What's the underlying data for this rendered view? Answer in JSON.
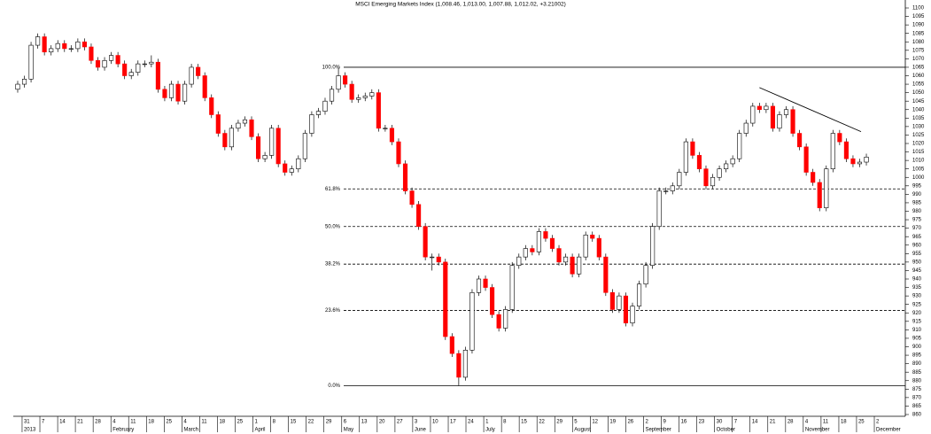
{
  "chart_data": {
    "type": "candlestick",
    "title": "MSCI Emerging Markets Index (1,008.46, 1,013.00, 1,007.88, 1,012.02, +3.21002)",
    "x": [
      0,
      1,
      2,
      3,
      4,
      5,
      6,
      7,
      8,
      9,
      10,
      11,
      12,
      13,
      14,
      15,
      16,
      17,
      18,
      19,
      20,
      21,
      22,
      23,
      24,
      25,
      26,
      27,
      28,
      29,
      30,
      31,
      32,
      33,
      34,
      35,
      36,
      37,
      38,
      39,
      40,
      41,
      42,
      43,
      44,
      45,
      46,
      47,
      48,
      49,
      50,
      51,
      52,
      53,
      54,
      55,
      56,
      57,
      58,
      59,
      60,
      61,
      62,
      63,
      64,
      65,
      66,
      67,
      68,
      69,
      70,
      71,
      72,
      73,
      74,
      75,
      76,
      77,
      78,
      79,
      80,
      81,
      82,
      83,
      84,
      85,
      86,
      87,
      88,
      89,
      90,
      91,
      92,
      93,
      94,
      95,
      96,
      97,
      98,
      99,
      100,
      101,
      102,
      103,
      104,
      105,
      106,
      107,
      108,
      109,
      110,
      111,
      112,
      113,
      114,
      115,
      116,
      117,
      118,
      119,
      120,
      121,
      122,
      123,
      124,
      125,
      126,
      127
    ],
    "open": [
      1052,
      1055,
      1058,
      1078,
      1083,
      1074,
      1076,
      1079,
      1076,
      1076,
      1080,
      1077,
      1069,
      1065,
      1069,
      1072,
      1067,
      1060,
      1062,
      1067,
      1067,
      1068,
      1052,
      1047,
      1055,
      1045,
      1055,
      1065,
      1060,
      1047,
      1037,
      1026,
      1018,
      1029,
      1032,
      1034,
      1024,
      1011,
      1013,
      1029,
      1008,
      1003,
      1005,
      1011,
      1026,
      1037,
      1039,
      1045,
      1052,
      1060,
      1055,
      1046,
      1047,
      1048,
      1050,
      1029,
      1029,
      1021,
      1008,
      992,
      984,
      971,
      953,
      953,
      950,
      906,
      896,
      882,
      898,
      932,
      940,
      935,
      919,
      911,
      922,
      948,
      953,
      958,
      956,
      968,
      964,
      958,
      950,
      953,
      943,
      953,
      966,
      964,
      953,
      932,
      922,
      930,
      914,
      924,
      937,
      948,
      971,
      992,
      992,
      995,
      1003,
      1021,
      1013,
      1005,
      995,
      1000,
      1005,
      1008,
      1011,
      1026,
      1032,
      1042,
      1040,
      1042,
      1029,
      1037,
      1040,
      1026,
      1018,
      1003,
      997,
      982,
      1005,
      1026,
      1021,
      1011,
      1008,
      1009
    ],
    "high": [
      1057,
      1060,
      1080,
      1085,
      1085,
      1078,
      1081,
      1081,
      1078,
      1082,
      1082,
      1079,
      1071,
      1071,
      1074,
      1074,
      1069,
      1064,
      1069,
      1069,
      1072,
      1070,
      1054,
      1057,
      1057,
      1057,
      1067,
      1067,
      1062,
      1049,
      1039,
      1028,
      1031,
      1034,
      1036,
      1036,
      1026,
      1015,
      1031,
      1031,
      1010,
      1007,
      1013,
      1028,
      1039,
      1041,
      1047,
      1054,
      1065,
      1062,
      1057,
      1049,
      1050,
      1052,
      1052,
      1031,
      1031,
      1023,
      1010,
      994,
      986,
      973,
      955,
      955,
      952,
      908,
      898,
      900,
      934,
      942,
      942,
      937,
      921,
      924,
      950,
      955,
      960,
      960,
      970,
      970,
      966,
      960,
      955,
      955,
      955,
      968,
      968,
      966,
      955,
      934,
      932,
      932,
      926,
      939,
      950,
      973,
      994,
      994,
      997,
      1005,
      1023,
      1023,
      1015,
      1007,
      1002,
      1007,
      1010,
      1013,
      1028,
      1034,
      1044,
      1044,
      1044,
      1044,
      1039,
      1042,
      1042,
      1028,
      1020,
      1005,
      999,
      1007,
      1028,
      1028,
      1023,
      1013,
      1011,
      1014
    ],
    "low": [
      1050,
      1053,
      1056,
      1076,
      1072,
      1072,
      1074,
      1074,
      1074,
      1074,
      1075,
      1067,
      1063,
      1063,
      1067,
      1065,
      1058,
      1058,
      1060,
      1065,
      1065,
      1050,
      1045,
      1045,
      1043,
      1043,
      1053,
      1058,
      1045,
      1035,
      1024,
      1016,
      1016,
      1027,
      1030,
      1022,
      1009,
      1009,
      1011,
      1006,
      1001,
      1001,
      1003,
      1009,
      1024,
      1035,
      1037,
      1043,
      1050,
      1053,
      1044,
      1044,
      1045,
      1046,
      1027,
      1027,
      1019,
      1006,
      990,
      982,
      969,
      951,
      945,
      948,
      904,
      894,
      877,
      880,
      896,
      930,
      933,
      917,
      909,
      909,
      920,
      946,
      951,
      954,
      954,
      962,
      956,
      948,
      948,
      941,
      941,
      951,
      962,
      951,
      930,
      920,
      920,
      912,
      912,
      922,
      935,
      946,
      969,
      990,
      990,
      993,
      1001,
      1011,
      1003,
      993,
      993,
      998,
      1003,
      1006,
      1009,
      1024,
      1030,
      1038,
      1038,
      1027,
      1027,
      1035,
      1024,
      1016,
      1001,
      995,
      980,
      980,
      1003,
      1019,
      1009,
      1006,
      1006,
      1007
    ],
    "close": [
      1055,
      1058,
      1078,
      1083,
      1074,
      1076,
      1079,
      1076,
      1076,
      1080,
      1077,
      1069,
      1065,
      1069,
      1072,
      1067,
      1060,
      1062,
      1067,
      1067,
      1068,
      1052,
      1047,
      1055,
      1045,
      1055,
      1065,
      1060,
      1047,
      1037,
      1026,
      1018,
      1029,
      1032,
      1034,
      1024,
      1011,
      1013,
      1029,
      1008,
      1003,
      1005,
      1011,
      1026,
      1037,
      1039,
      1045,
      1052,
      1060,
      1055,
      1046,
      1047,
      1048,
      1050,
      1029,
      1029,
      1021,
      1008,
      992,
      984,
      971,
      953,
      953,
      950,
      906,
      896,
      882,
      898,
      932,
      940,
      935,
      919,
      911,
      922,
      948,
      953,
      958,
      956,
      968,
      964,
      958,
      950,
      953,
      943,
      953,
      966,
      964,
      953,
      932,
      922,
      930,
      914,
      924,
      937,
      948,
      971,
      992,
      992,
      995,
      1003,
      1021,
      1013,
      1005,
      995,
      1000,
      1005,
      1008,
      1011,
      1026,
      1032,
      1042,
      1040,
      1042,
      1029,
      1037,
      1040,
      1026,
      1018,
      1003,
      997,
      982,
      1005,
      1026,
      1021,
      1011,
      1008,
      1009,
      1012
    ],
    "up_color": "#ffffff",
    "down_color": "#ff0000",
    "xlim": [
      -0.66,
      131.9
    ],
    "ylim": [
      860,
      1100
    ],
    "yticks": [
      860,
      865,
      870,
      875,
      880,
      885,
      890,
      895,
      900,
      905,
      910,
      915,
      920,
      925,
      930,
      935,
      940,
      945,
      950,
      955,
      960,
      965,
      970,
      975,
      980,
      985,
      990,
      995,
      1000,
      1005,
      1010,
      1015,
      1020,
      1025,
      1030,
      1035,
      1040,
      1045,
      1050,
      1055,
      1060,
      1065,
      1070,
      1075,
      1080,
      1085,
      1090,
      1095,
      1100
    ],
    "xticks": [
      {
        "value": 0.66,
        "label": "31"
      },
      {
        "value": 3.32,
        "label": "7"
      },
      {
        "value": 5.98,
        "label": "14"
      },
      {
        "value": 8.63,
        "label": "21"
      },
      {
        "value": 11.29,
        "label": "28"
      },
      {
        "value": 13.95,
        "label": "4"
      },
      {
        "value": 16.6,
        "label": "11"
      },
      {
        "value": 19.26,
        "label": "18"
      },
      {
        "value": 21.92,
        "label": "25"
      },
      {
        "value": 24.57,
        "label": "4"
      },
      {
        "value": 27.23,
        "label": "11"
      },
      {
        "value": 29.89,
        "label": "18"
      },
      {
        "value": 32.54,
        "label": "25"
      },
      {
        "value": 35.2,
        "label": "1"
      },
      {
        "value": 37.86,
        "label": "8"
      },
      {
        "value": 40.52,
        "label": "15"
      },
      {
        "value": 43.17,
        "label": "22"
      },
      {
        "value": 45.83,
        "label": "29"
      },
      {
        "value": 48.49,
        "label": "6"
      },
      {
        "value": 51.14,
        "label": "13"
      },
      {
        "value": 53.8,
        "label": "20"
      },
      {
        "value": 56.46,
        "label": "27"
      },
      {
        "value": 59.11,
        "label": "3"
      },
      {
        "value": 61.77,
        "label": "10"
      },
      {
        "value": 64.43,
        "label": "17"
      },
      {
        "value": 67.08,
        "label": "24"
      },
      {
        "value": 69.74,
        "label": "1"
      },
      {
        "value": 72.4,
        "label": "8"
      },
      {
        "value": 75.05,
        "label": "15"
      },
      {
        "value": 77.71,
        "label": "22"
      },
      {
        "value": 80.37,
        "label": "29"
      },
      {
        "value": 83.02,
        "label": "5"
      },
      {
        "value": 85.68,
        "label": "12"
      },
      {
        "value": 88.34,
        "label": "19"
      },
      {
        "value": 91.0,
        "label": "26"
      },
      {
        "value": 93.65,
        "label": "2"
      },
      {
        "value": 96.31,
        "label": "9"
      },
      {
        "value": 98.97,
        "label": "16"
      },
      {
        "value": 101.62,
        "label": "23"
      },
      {
        "value": 104.28,
        "label": "30"
      },
      {
        "value": 106.94,
        "label": "7"
      },
      {
        "value": 109.59,
        "label": "14"
      },
      {
        "value": 112.25,
        "label": "21"
      },
      {
        "value": 114.91,
        "label": "28"
      },
      {
        "value": 117.56,
        "label": "4"
      },
      {
        "value": 120.22,
        "label": "11"
      },
      {
        "value": 122.88,
        "label": "18"
      },
      {
        "value": 125.53,
        "label": "25"
      },
      {
        "value": 128.19,
        "label": "2"
      }
    ],
    "month_ticks": [
      {
        "value": 0.66,
        "label": "2013"
      },
      {
        "value": 13.95,
        "label": "February"
      },
      {
        "value": 24.57,
        "label": "March"
      },
      {
        "value": 35.2,
        "label": "April"
      },
      {
        "value": 48.49,
        "label": "May"
      },
      {
        "value": 59.11,
        "label": "June"
      },
      {
        "value": 69.74,
        "label": "July"
      },
      {
        "value": 83.02,
        "label": "August"
      },
      {
        "value": 93.65,
        "label": "September"
      },
      {
        "value": 104.28,
        "label": "October"
      },
      {
        "value": 117.56,
        "label": "November"
      },
      {
        "value": 128.19,
        "label": "December"
      }
    ],
    "levels": [
      {
        "value": 1065,
        "label": "100.0%",
        "style": "solid"
      },
      {
        "value": 993.2,
        "label": "61.8%",
        "style": "dashed"
      },
      {
        "value": 971,
        "label": "50.0%",
        "style": "dashed"
      },
      {
        "value": 948.8,
        "label": "38.2%",
        "style": "dashed"
      },
      {
        "value": 921.4,
        "label": "23.6%",
        "style": "dashed"
      },
      {
        "value": 877,
        "label": "0.0%",
        "style": "solid"
      }
    ],
    "trendline": {
      "x": [
        111.0,
        126.2
      ],
      "y": [
        1053,
        1027
      ]
    }
  }
}
